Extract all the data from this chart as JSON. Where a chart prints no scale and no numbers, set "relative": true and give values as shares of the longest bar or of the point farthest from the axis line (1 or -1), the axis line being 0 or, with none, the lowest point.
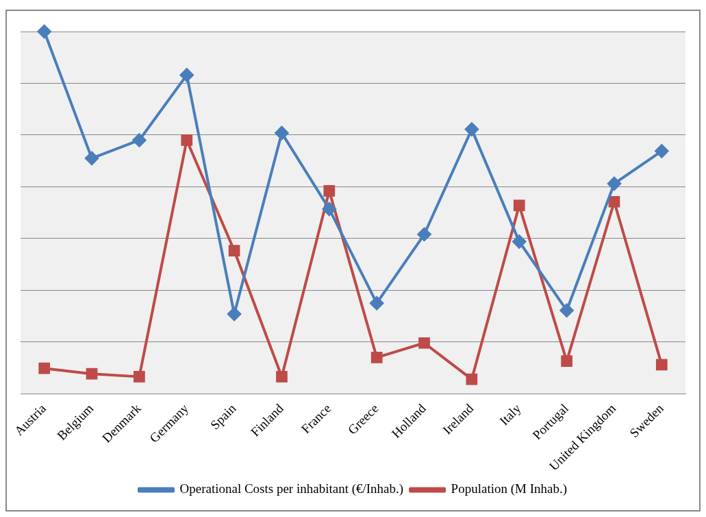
{
  "chart_data": {
    "type": "line",
    "relative": true,
    "grid": "y",
    "legend": "bottom",
    "categories": [
      "Austria",
      "Belgium",
      "Denmark",
      "Germany",
      "Spain",
      "Finland",
      "France",
      "Greece",
      "Holland",
      "Ireland",
      "Italy",
      "Portugal",
      "United Kingdom",
      "Sweden"
    ],
    "series": [
      {
        "name": "Operational Costs per inhabitant (€/Inhab.)",
        "color": "#4a7ebb",
        "marker": "diamond",
        "values": [
          1,
          0.65,
          0.7,
          0.88,
          0.22,
          0.72,
          0.51,
          0.25,
          0.44,
          0.73,
          0.42,
          0.23,
          0.58,
          0.67
        ]
      },
      {
        "name": "Population (M Inhab.)",
        "color": "#be4b48",
        "marker": "square",
        "values": [
          0.07,
          0.055,
          0.047,
          0.7,
          0.395,
          0.047,
          0.56,
          0.1,
          0.14,
          0.04,
          0.52,
          0.09,
          0.53,
          0.08
        ]
      }
    ]
  }
}
